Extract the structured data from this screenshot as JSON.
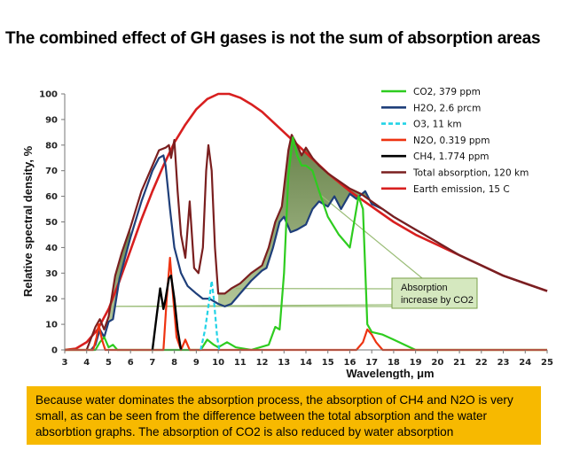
{
  "title": "The combined effect of GH gases is not the sum of absorption areas",
  "footnote": "Because water dominates the absorption process, the absorption of CH4 and N2O is very small, as can be seen from the difference between the total absorption and the water absorbtion graphs. The absorption of CO2 is also reduced by water absorption",
  "chart_data": {
    "type": "line",
    "xlabel": "Wavelength, μm",
    "ylabel": "Relative spectral density, %",
    "xlim": [
      3,
      25
    ],
    "ylim": [
      0,
      100
    ],
    "x_ticks": [
      3,
      4,
      5,
      6,
      7,
      8,
      9,
      10,
      11,
      12,
      13,
      14,
      15,
      16,
      17,
      18,
      19,
      20,
      21,
      22,
      23,
      24,
      25
    ],
    "y_ticks": [
      0,
      10,
      20,
      30,
      40,
      50,
      60,
      70,
      80,
      90,
      100
    ],
    "grid": false,
    "legend_position": "top-right",
    "annotation": {
      "text_line1": "Absorption",
      "text_line2": "increase by CO2"
    },
    "series": [
      {
        "name": "CO2, 379 ppm",
        "color": "#2ecc1f",
        "dash": "solid",
        "points": [
          [
            3,
            0
          ],
          [
            4.4,
            0
          ],
          [
            4.6,
            3
          ],
          [
            4.8,
            5
          ],
          [
            5.0,
            1
          ],
          [
            5.2,
            2
          ],
          [
            5.4,
            0
          ],
          [
            9.2,
            0
          ],
          [
            9.5,
            4
          ],
          [
            9.8,
            2
          ],
          [
            10.0,
            1
          ],
          [
            10.4,
            3
          ],
          [
            10.8,
            1
          ],
          [
            11.5,
            0
          ],
          [
            12.3,
            2
          ],
          [
            12.6,
            9
          ],
          [
            12.8,
            8
          ],
          [
            13.0,
            30
          ],
          [
            13.2,
            68
          ],
          [
            13.4,
            83
          ],
          [
            13.6,
            76
          ],
          [
            13.8,
            72
          ],
          [
            14.0,
            72
          ],
          [
            14.3,
            70
          ],
          [
            14.6,
            62
          ],
          [
            15.0,
            52
          ],
          [
            15.5,
            45
          ],
          [
            16.0,
            40
          ],
          [
            16.4,
            60
          ],
          [
            16.6,
            55
          ],
          [
            16.8,
            10
          ],
          [
            17.0,
            7
          ],
          [
            17.5,
            6
          ],
          [
            18.0,
            4
          ],
          [
            18.5,
            2
          ],
          [
            19.0,
            0
          ],
          [
            25,
            0
          ]
        ]
      },
      {
        "name": "H2O, 2.6 prcm",
        "color": "#1f3f7a",
        "dash": "solid",
        "points": [
          [
            4.2,
            0
          ],
          [
            4.4,
            2
          ],
          [
            4.6,
            8
          ],
          [
            4.8,
            5
          ],
          [
            5.0,
            11
          ],
          [
            5.2,
            12
          ],
          [
            5.5,
            28
          ],
          [
            6.0,
            44
          ],
          [
            6.5,
            58
          ],
          [
            7.0,
            70
          ],
          [
            7.3,
            75
          ],
          [
            7.5,
            76
          ],
          [
            7.6,
            72
          ],
          [
            7.8,
            55
          ],
          [
            8.0,
            40
          ],
          [
            8.3,
            30
          ],
          [
            8.6,
            25
          ],
          [
            9.0,
            22
          ],
          [
            9.3,
            20
          ],
          [
            9.6,
            20
          ],
          [
            10.0,
            18
          ],
          [
            10.3,
            17
          ],
          [
            10.6,
            18
          ],
          [
            11.0,
            22
          ],
          [
            11.5,
            27
          ],
          [
            12.0,
            31
          ],
          [
            12.2,
            32
          ],
          [
            12.5,
            40
          ],
          [
            12.8,
            50
          ],
          [
            13.0,
            52
          ],
          [
            13.3,
            46
          ],
          [
            13.6,
            47
          ],
          [
            14.0,
            49
          ],
          [
            14.3,
            55
          ],
          [
            14.6,
            58
          ],
          [
            15.0,
            56
          ],
          [
            15.3,
            60
          ],
          [
            15.6,
            55
          ],
          [
            16.0,
            61
          ],
          [
            16.3,
            59
          ],
          [
            16.7,
            62
          ],
          [
            17.0,
            57
          ],
          [
            17.5,
            55
          ],
          [
            18.0,
            52
          ],
          [
            19.0,
            47
          ],
          [
            20.0,
            42
          ],
          [
            21.0,
            37
          ],
          [
            22.0,
            33
          ],
          [
            23.0,
            29
          ],
          [
            24.0,
            26
          ],
          [
            25.0,
            23
          ]
        ]
      },
      {
        "name": "O3, 11 km",
        "color": "#22d3e6",
        "dash": "dashed",
        "points": [
          [
            9.2,
            0
          ],
          [
            9.4,
            8
          ],
          [
            9.6,
            20
          ],
          [
            9.7,
            27
          ],
          [
            9.8,
            20
          ],
          [
            9.95,
            5
          ],
          [
            10.05,
            0
          ]
        ]
      },
      {
        "name": "N2O, 0.319 ppm",
        "color": "#ee3311",
        "dash": "solid",
        "points": [
          [
            3,
            0
          ],
          [
            4.3,
            0
          ],
          [
            4.45,
            5
          ],
          [
            4.55,
            10
          ],
          [
            4.7,
            4
          ],
          [
            4.85,
            0
          ],
          [
            7.5,
            0
          ],
          [
            7.65,
            20
          ],
          [
            7.8,
            36
          ],
          [
            7.95,
            20
          ],
          [
            8.1,
            5
          ],
          [
            8.3,
            0
          ],
          [
            8.5,
            4
          ],
          [
            8.7,
            0
          ],
          [
            16.3,
            0
          ],
          [
            16.6,
            3
          ],
          [
            16.8,
            8
          ],
          [
            17.0,
            6
          ],
          [
            17.2,
            3
          ],
          [
            17.5,
            0
          ],
          [
            25,
            0
          ]
        ]
      },
      {
        "name": "CH4, 1.774 ppm",
        "color": "#000000",
        "dash": "solid",
        "points": [
          [
            7.0,
            0
          ],
          [
            7.2,
            14
          ],
          [
            7.35,
            24
          ],
          [
            7.5,
            16
          ],
          [
            7.6,
            20
          ],
          [
            7.75,
            28
          ],
          [
            7.85,
            29
          ],
          [
            8.0,
            20
          ],
          [
            8.15,
            8
          ],
          [
            8.3,
            0
          ]
        ]
      },
      {
        "name": "Total absorption, 120 km",
        "color": "#7a1f1f",
        "dash": "solid",
        "points": [
          [
            4.0,
            0
          ],
          [
            4.4,
            9
          ],
          [
            4.6,
            12
          ],
          [
            4.8,
            8
          ],
          [
            5.0,
            13
          ],
          [
            5.3,
            29
          ],
          [
            5.6,
            38
          ],
          [
            6.0,
            48
          ],
          [
            6.5,
            62
          ],
          [
            7.0,
            72
          ],
          [
            7.3,
            78
          ],
          [
            7.6,
            79
          ],
          [
            7.75,
            80
          ],
          [
            7.85,
            75
          ],
          [
            8.0,
            82
          ],
          [
            8.15,
            62
          ],
          [
            8.3,
            45
          ],
          [
            8.5,
            36
          ],
          [
            8.7,
            58
          ],
          [
            8.9,
            32
          ],
          [
            9.1,
            30
          ],
          [
            9.3,
            40
          ],
          [
            9.45,
            70
          ],
          [
            9.55,
            80
          ],
          [
            9.7,
            70
          ],
          [
            9.85,
            40
          ],
          [
            10.0,
            22
          ],
          [
            10.3,
            22
          ],
          [
            10.6,
            24
          ],
          [
            11.0,
            26
          ],
          [
            11.5,
            30
          ],
          [
            12.0,
            33
          ],
          [
            12.3,
            40
          ],
          [
            12.6,
            50
          ],
          [
            12.9,
            56
          ],
          [
            13.2,
            78
          ],
          [
            13.35,
            84
          ],
          [
            13.6,
            80
          ],
          [
            13.8,
            76
          ],
          [
            14.0,
            79
          ],
          [
            14.3,
            75
          ],
          [
            14.6,
            72
          ],
          [
            15.0,
            69
          ],
          [
            15.5,
            66
          ],
          [
            16.0,
            63
          ],
          [
            16.5,
            61
          ],
          [
            17.0,
            58
          ],
          [
            17.5,
            55
          ],
          [
            18.0,
            52
          ],
          [
            19.0,
            47
          ],
          [
            20.0,
            42
          ],
          [
            21.0,
            37
          ],
          [
            22.0,
            33
          ],
          [
            23.0,
            29
          ],
          [
            24.0,
            26
          ],
          [
            25.0,
            23
          ]
        ]
      },
      {
        "name": "Earth emission, 15 C",
        "color": "#d81f1f",
        "dash": "solid",
        "points": [
          [
            3,
            0
          ],
          [
            3.5,
            0.5
          ],
          [
            4.0,
            3
          ],
          [
            4.5,
            8
          ],
          [
            5.0,
            16
          ],
          [
            5.5,
            27
          ],
          [
            6.0,
            39
          ],
          [
            6.5,
            51
          ],
          [
            7.0,
            62
          ],
          [
            7.5,
            72
          ],
          [
            8.0,
            81
          ],
          [
            8.5,
            88
          ],
          [
            9.0,
            94
          ],
          [
            9.5,
            98
          ],
          [
            10.0,
            100
          ],
          [
            10.5,
            100
          ],
          [
            11.0,
            98.5
          ],
          [
            11.5,
            96
          ],
          [
            12.0,
            93
          ],
          [
            13.0,
            85
          ],
          [
            14.0,
            77
          ],
          [
            15.0,
            69
          ],
          [
            16.0,
            62
          ],
          [
            17.0,
            56
          ],
          [
            18.0,
            50
          ],
          [
            19.0,
            45
          ],
          [
            20.0,
            41
          ],
          [
            21.0,
            37
          ],
          [
            22.0,
            33
          ],
          [
            23.0,
            29
          ],
          [
            24.0,
            26
          ],
          [
            25.0,
            23
          ]
        ]
      }
    ]
  }
}
